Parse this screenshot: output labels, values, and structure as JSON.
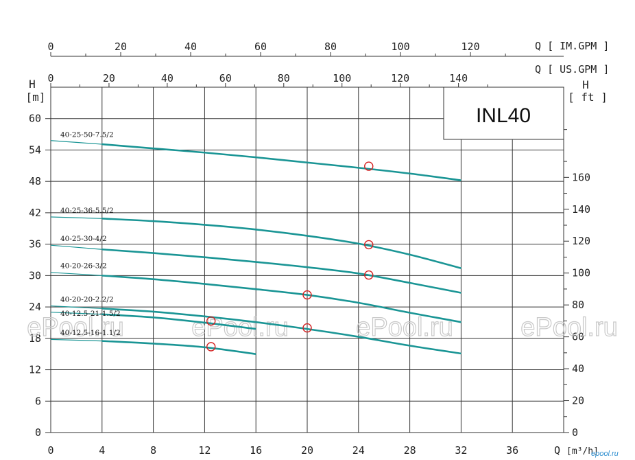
{
  "chart_data": {
    "type": "line",
    "title_box": "INL40",
    "y_left": {
      "label": "H",
      "unit": "[m]",
      "range": [
        0,
        60
      ],
      "ticks": [
        0,
        6,
        12,
        18,
        24,
        30,
        36,
        42,
        48,
        54,
        60
      ]
    },
    "y_right": {
      "label": "H",
      "unit": "[ ft ]",
      "range_ft": [
        0,
        196.85
      ],
      "ticks": [
        0,
        20,
        40,
        60,
        80,
        100,
        120,
        140,
        160
      ]
    },
    "x_bottom": {
      "label": "Q",
      "unit": "[m³/h]",
      "range": [
        0,
        40
      ],
      "ticks": [
        0,
        4,
        8,
        12,
        16,
        20,
        24,
        28,
        32,
        36
      ]
    },
    "x_top_us": {
      "label": "Q",
      "unit": "[ US.GPM ]",
      "ticks": [
        0,
        20,
        40,
        60,
        80,
        100,
        120,
        140
      ]
    },
    "x_top_im": {
      "label": "Q",
      "unit": "[ IM.GPM ]",
      "ticks": [
        0,
        20,
        40,
        60,
        80,
        100,
        120
      ]
    },
    "watermarks": [
      "ePool.ru",
      "ePool.ru",
      "ePool.ru",
      "ePool.ru"
    ],
    "corner_logo": "epool.ru",
    "curve_color": "#1a9595",
    "marker_color": "#d42020",
    "series": [
      {
        "name": "40-25-50-7.5/2",
        "x": [
          0,
          4,
          8,
          12,
          16,
          20,
          24,
          28,
          32
        ],
        "y": [
          55.8,
          55.1,
          54.3,
          53.5,
          52.6,
          51.6,
          50.6,
          49.5,
          48.2
        ],
        "marker": [
          24.8,
          50.9
        ],
        "label_y": 56.5
      },
      {
        "name": "40-25-36-5.5/2",
        "x": [
          0,
          4,
          8,
          12,
          16,
          20,
          24,
          28,
          32
        ],
        "y": [
          41.2,
          40.9,
          40.4,
          39.7,
          38.8,
          37.6,
          36.1,
          34.0,
          31.4
        ],
        "marker": [
          24.8,
          35.9
        ],
        "label_y": 42.0
      },
      {
        "name": "40-25-30-4/2",
        "x": [
          0,
          4,
          8,
          12,
          16,
          20,
          24,
          28,
          32
        ],
        "y": [
          35.8,
          35.0,
          34.3,
          33.5,
          32.6,
          31.6,
          30.4,
          28.6,
          26.7
        ],
        "marker": [
          24.8,
          30.1
        ],
        "label_y": 36.6
      },
      {
        "name": "40-20-26-3/2",
        "x": [
          0,
          4,
          8,
          12,
          16,
          20,
          24,
          28,
          32
        ],
        "y": [
          30.6,
          30.0,
          29.3,
          28.4,
          27.4,
          26.3,
          24.8,
          22.9,
          21.1
        ],
        "marker": [
          20,
          26.3
        ],
        "label_y": 31.4
      },
      {
        "name": "40-20-20-2.2/2",
        "x": [
          0,
          4,
          8,
          12,
          16,
          20,
          24,
          28,
          32
        ],
        "y": [
          24.2,
          23.7,
          23.1,
          22.2,
          21.1,
          19.8,
          18.3,
          16.6,
          15.1
        ],
        "marker": [
          20,
          20.0
        ],
        "label_y": 25.0
      },
      {
        "name": "40-12.5-21-1.5/2",
        "x": [
          0,
          4,
          8,
          12,
          16
        ],
        "y": [
          23.0,
          22.6,
          22.0,
          21.0,
          19.8
        ],
        "marker": [
          12.5,
          21.3
        ],
        "label_y": 22.3
      },
      {
        "name": "40-12.5-16-1.1/2",
        "x": [
          0,
          4,
          8,
          12,
          16
        ],
        "y": [
          17.8,
          17.5,
          17.0,
          16.3,
          15.0
        ],
        "marker": [
          12.5,
          16.4
        ],
        "label_y": 18.6
      }
    ]
  }
}
